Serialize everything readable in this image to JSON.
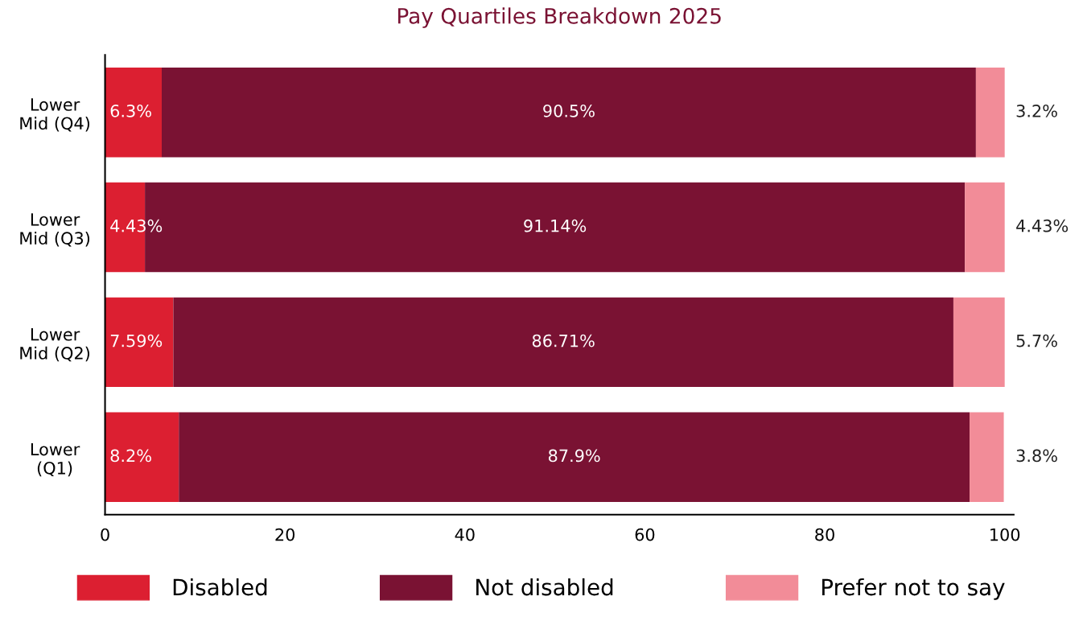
{
  "chart_data": {
    "type": "bar",
    "orientation": "horizontal",
    "stacked": true,
    "title": "Pay Quartiles Breakdown 2025",
    "categories": [
      "Lower\nMid (Q4)",
      "Lower\nMid (Q3)",
      "Lower\nMid (Q2)",
      "Lower\n(Q1)"
    ],
    "series": [
      {
        "name": "Disabled",
        "color": "#dc1f31",
        "values": [
          6.3,
          4.43,
          7.59,
          8.2
        ],
        "value_labels": [
          "6.3%",
          "4.43%",
          "7.59%",
          "8.2%"
        ]
      },
      {
        "name": "Not disabled",
        "color": "#7a1233",
        "values": [
          90.5,
          91.14,
          86.71,
          87.9
        ],
        "value_labels": [
          "90.5%",
          "91.14%",
          "86.71%",
          "87.9%"
        ]
      },
      {
        "name": "Prefer not to say",
        "color": "#f28c98",
        "values": [
          3.2,
          4.43,
          5.7,
          3.8
        ],
        "value_labels": [
          "3.2%",
          "4.43%",
          "5.7%",
          "3.8%"
        ]
      }
    ],
    "xlim": [
      0,
      101
    ],
    "xticks": [
      0,
      20,
      40,
      60,
      80,
      100
    ],
    "grid": false,
    "legend": "bottom"
  }
}
